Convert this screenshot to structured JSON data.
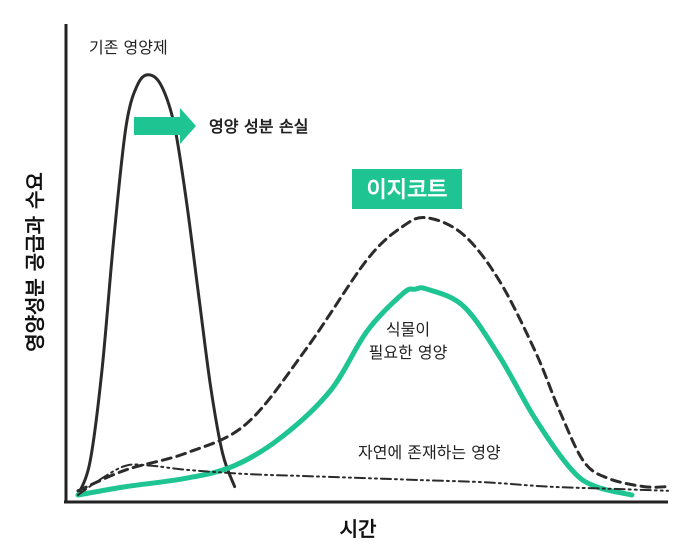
{
  "chart_data": {
    "type": "line",
    "title": "",
    "xlabel": "시간",
    "ylabel": "영양성분 공급과 수요",
    "xlim": [
      0,
      100
    ],
    "ylim": [
      0,
      100
    ],
    "grid": false,
    "series": [
      {
        "name": "기존 영양제",
        "style": "solid",
        "color": "#2b2b2b",
        "x": [
          2,
          4,
          6,
          8,
          10,
          12,
          14,
          16,
          18,
          20,
          22,
          24,
          26,
          28
        ],
        "y": [
          0,
          8,
          30,
          62,
          88,
          98,
          100,
          97,
          88,
          70,
          48,
          26,
          10,
          2
        ]
      },
      {
        "name": "이지코트",
        "style": "dashed",
        "color": "#2b2b2b",
        "x": [
          2,
          10,
          20,
          30,
          40,
          50,
          56,
          60,
          66,
          72,
          78,
          82,
          86,
          90,
          96,
          100
        ],
        "y": [
          1,
          6,
          10,
          17,
          35,
          56,
          64,
          66,
          62,
          51,
          34,
          20,
          8,
          4,
          2,
          2
        ]
      },
      {
        "name": "식물이 필요한 영양",
        "style": "solid",
        "color": "#1ec492",
        "x": [
          2,
          10,
          20,
          28,
          36,
          44,
          50,
          56,
          58,
          60,
          66,
          72,
          78,
          84,
          88,
          94
        ],
        "y": [
          0,
          2,
          4,
          7,
          14,
          25,
          39,
          48,
          49,
          49,
          45,
          33,
          18,
          6,
          2,
          0
        ]
      },
      {
        "name": "자연에 존재하는 영양",
        "style": "dashdot",
        "color": "#2b2b2b",
        "x": [
          2,
          6,
          10,
          14,
          20,
          30,
          40,
          50,
          60,
          70,
          80,
          90,
          100
        ],
        "y": [
          0,
          4,
          7,
          7,
          6,
          5,
          4.5,
          4,
          3.5,
          3,
          2,
          1.5,
          1
        ]
      }
    ],
    "annotations": {
      "existing": "기존 영양제",
      "loss": "영양 성분 손실",
      "badge": "이지코트",
      "plant_line1": "식물이",
      "plant_line2": "필요한 영양",
      "nature": "자연에 존재하는 영양"
    },
    "colors": {
      "accent": "#1ec492",
      "ink": "#2b2b2b",
      "axis": "#222222"
    }
  }
}
